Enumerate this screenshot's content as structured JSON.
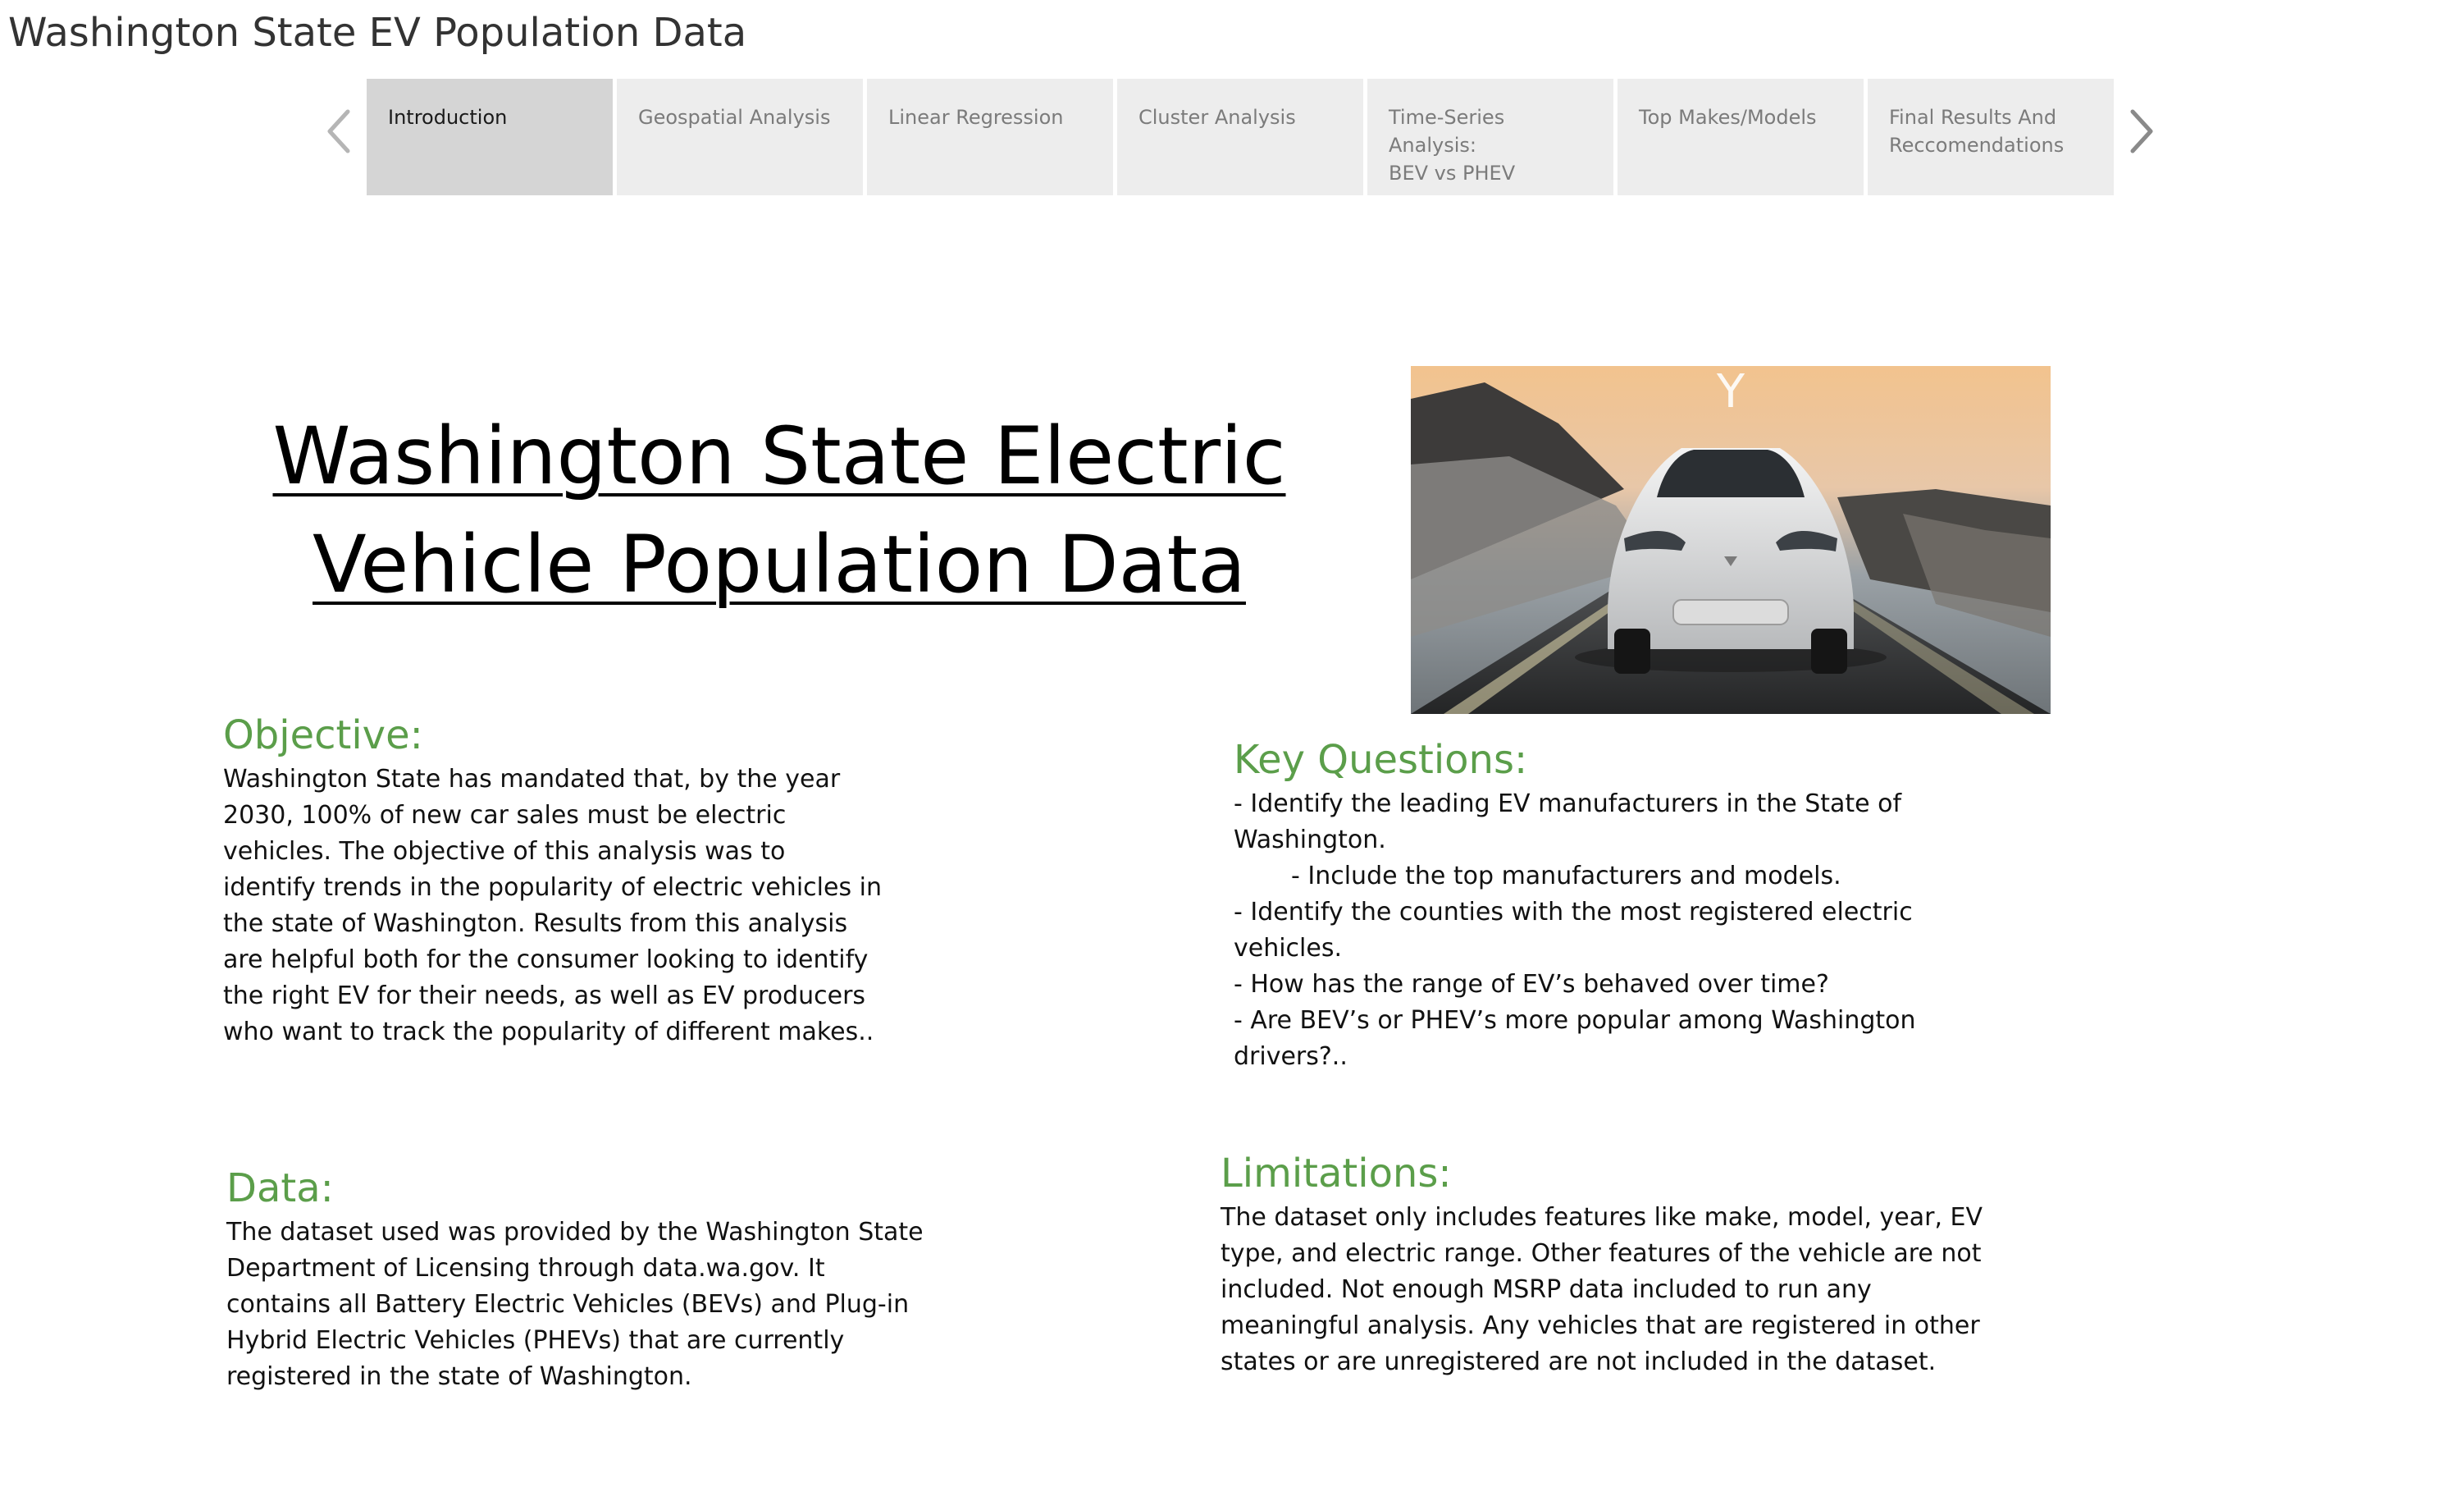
{
  "app": {
    "title": "Washington State EV Population Data"
  },
  "nav": {
    "prev_icon": "chevron-left-icon",
    "next_icon": "chevron-right-icon"
  },
  "tabs": [
    {
      "label": "Introduction",
      "active": true
    },
    {
      "label": "Geospatial Analysis",
      "active": false
    },
    {
      "label": "Linear Regression",
      "active": false
    },
    {
      "label": "Cluster Analysis",
      "active": false
    },
    {
      "label": "Time-Series Analysis:\nBEV vs PHEV",
      "active": false
    },
    {
      "label": "Top Makes/Models",
      "active": false
    },
    {
      "label": "Final Results And\nReccomendations",
      "active": false
    }
  ],
  "dashboard": {
    "title_line1": "Washington State Electric",
    "title_line2": "Vehicle Population Data",
    "objective": {
      "heading": "Objective:",
      "lines": [
        "Washington State has mandated that, by the year",
        "2030, 100% of new car sales must be electric",
        "vehicles. The objective of this analysis was to",
        "identify trends in the popularity of electric vehicles in",
        "the state of Washington. Results from this analysis",
        "are helpful both for the consumer looking to identify",
        "the right EV for their needs, as well as EV producers",
        "who want to track the popularity of different makes.."
      ]
    },
    "key_questions": {
      "heading": "Key Questions:",
      "lines": [
        "- Identify the leading EV manufacturers in the State of",
        "Washington.",
        "- Include the top manufacturers and models.",
        "- Identify the counties with the most registered electric",
        "vehicles.",
        "- How has the range of EV’s behaved over time?",
        "- Are BEV’s or PHEV’s more popular among Washington",
        "drivers?.."
      ]
    },
    "data_section": {
      "heading": "Data:",
      "lines": [
        "The dataset used was provided by the Washington State",
        "Department of Licensing through data.wa.gov. It",
        "contains all Battery Electric Vehicles (BEVs) and Plug-in",
        "Hybrid Electric Vehicles (PHEVs) that are currently",
        "registered in the state of Washington."
      ]
    },
    "limitations": {
      "heading": "Limitations:",
      "lines": [
        "The dataset only includes features like make, model, year, EV",
        "type, and electric range. Other features of the vehicle are not",
        "included. Not enough MSRP data included to run any",
        "meaningful analysis. Any vehicles that are registered in other",
        "states or are unregistered are not included in the dataset."
      ]
    },
    "hero_image": {
      "subject": "white electric SUV on coastal road",
      "badge_text": "Y"
    }
  },
  "colors": {
    "heading_green": "#5b9e4a",
    "tab_bg": "#ededed",
    "tab_active_bg": "#d5d5d5"
  }
}
